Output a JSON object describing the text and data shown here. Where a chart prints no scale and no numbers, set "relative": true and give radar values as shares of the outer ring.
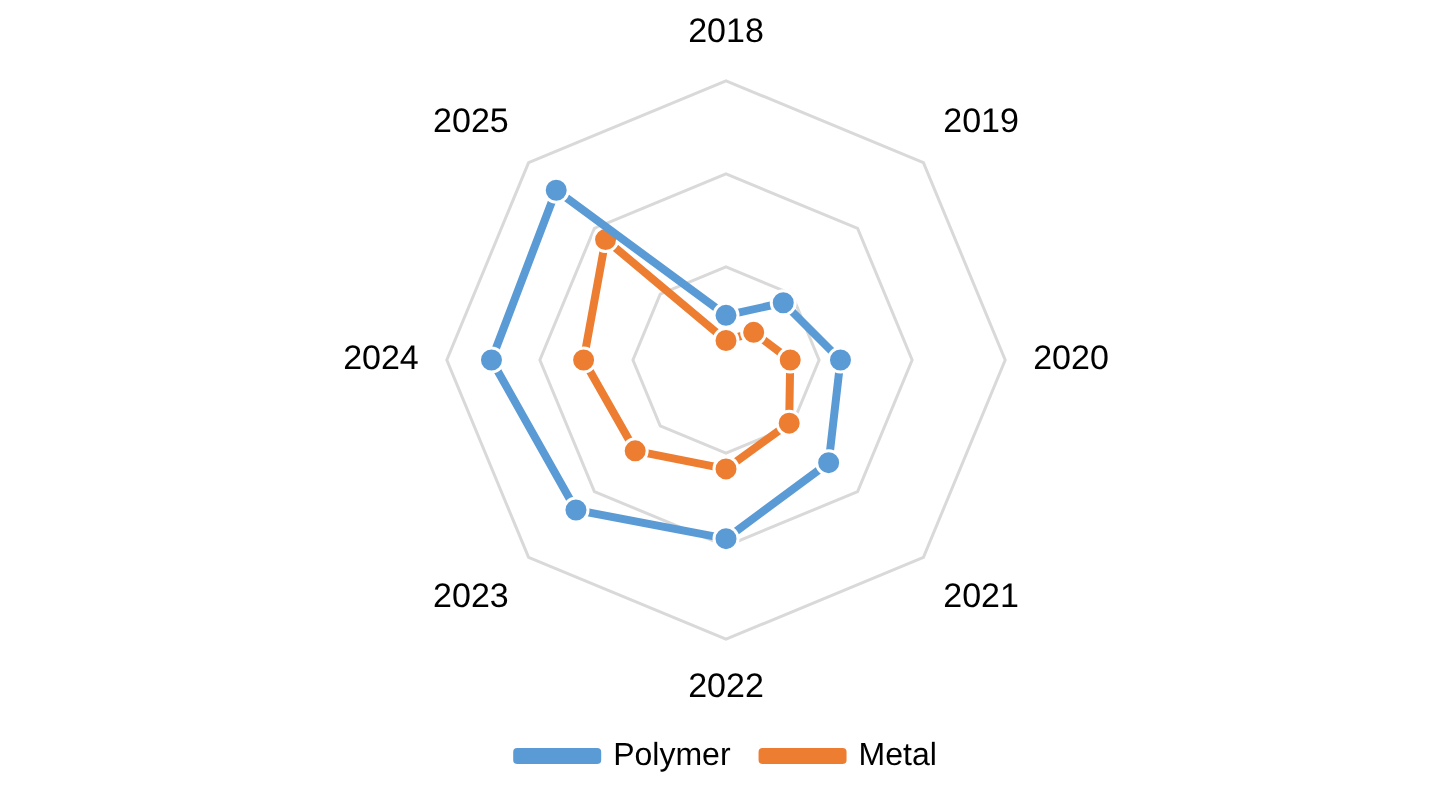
{
  "chart_data": {
    "type": "radar",
    "relative": true,
    "categories": [
      "2018",
      "2019",
      "2020",
      "2021",
      "2022",
      "2023",
      "2024",
      "2025"
    ],
    "series": [
      {
        "name": "Polymer",
        "color": "#5b9bd5",
        "values": [
          0.16,
          0.29,
          0.41,
          0.52,
          0.64,
          0.76,
          0.84,
          0.86
        ]
      },
      {
        "name": "Metal",
        "color": "#ed7d31",
        "values": [
          0.07,
          0.14,
          0.23,
          0.32,
          0.39,
          0.46,
          0.51,
          0.61
        ]
      }
    ],
    "grid": true,
    "legend": "bottom",
    "marker": "circle",
    "line_style": "solid"
  }
}
